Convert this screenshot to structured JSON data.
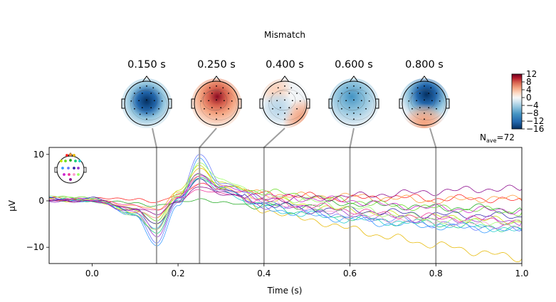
{
  "figure": {
    "title": "Mismatch",
    "nave_prefix": "N",
    "nave_sub": "ave",
    "nave_value": "=72"
  },
  "topomaps": [
    {
      "time_label": "0.150 s",
      "time": 0.15,
      "pattern": "central-negative"
    },
    {
      "time_label": "0.250 s",
      "time": 0.25,
      "pattern": "frontocentral-positive"
    },
    {
      "time_label": "0.400 s",
      "time": 0.4,
      "pattern": "weak-mixed"
    },
    {
      "time_label": "0.600 s",
      "time": 0.6,
      "pattern": "frontal-negative-weak"
    },
    {
      "time_label": "0.800 s",
      "time": 0.8,
      "pattern": "frontal-negative-occipital-positive"
    }
  ],
  "colorbar": {
    "colormap": "RdBu_r",
    "ticks": [
      "12",
      "8",
      "4",
      "0",
      "−4",
      "−8",
      "−12",
      "−16"
    ],
    "tick_values": [
      12,
      8,
      4,
      0,
      -4,
      -8,
      -12,
      -16
    ],
    "range": [
      -16,
      12
    ],
    "colors": {
      "max": "#67001f",
      "mid": "#f7f7f7",
      "min": "#053061"
    }
  },
  "chart_data": {
    "type": "line",
    "xlabel": "Time (s)",
    "ylabel": "µV",
    "xlim": [
      -0.1,
      1.0
    ],
    "ylim": [
      -13.5,
      11.5
    ],
    "xticks": [
      0.0,
      0.2,
      0.4,
      0.6,
      0.8,
      1.0
    ],
    "xtick_labels": [
      "0.0",
      "0.2",
      "0.4",
      "0.6",
      "0.8",
      "1.0"
    ],
    "yticks": [
      10,
      0,
      -10
    ],
    "ytick_labels": [
      "10",
      "0",
      "−10"
    ],
    "marker_lines": [
      0.15,
      0.25,
      0.4,
      0.6,
      0.8
    ],
    "grid": false,
    "sensor_legend": "top-left",
    "series": [
      {
        "color": "#ff2020",
        "points": [
          [
            -0.1,
            0.5
          ],
          [
            0.0,
            0.4
          ],
          [
            0.1,
            0.5
          ],
          [
            0.15,
            -0.5
          ],
          [
            0.2,
            1.5
          ],
          [
            0.25,
            3.5
          ],
          [
            0.3,
            2.5
          ],
          [
            0.4,
            1.5
          ],
          [
            0.5,
            1.0
          ],
          [
            0.6,
            0.5
          ],
          [
            0.7,
            0.8
          ],
          [
            0.8,
            0.5
          ],
          [
            0.9,
            0.5
          ],
          [
            1.0,
            0.0
          ]
        ]
      },
      {
        "color": "#ff9933",
        "points": [
          [
            -0.1,
            0.3
          ],
          [
            0.0,
            0.2
          ],
          [
            0.1,
            -1.0
          ],
          [
            0.15,
            -2.0
          ],
          [
            0.2,
            2.0
          ],
          [
            0.25,
            5.0
          ],
          [
            0.3,
            3.5
          ],
          [
            0.4,
            1.5
          ],
          [
            0.5,
            1.0
          ],
          [
            0.6,
            1.0
          ],
          [
            0.7,
            0.5
          ],
          [
            0.8,
            0.0
          ],
          [
            0.9,
            0.5
          ],
          [
            1.0,
            0.5
          ]
        ]
      },
      {
        "color": "#e6b800",
        "points": [
          [
            -0.1,
            0.0
          ],
          [
            0.0,
            0.2
          ],
          [
            0.1,
            -2.5
          ],
          [
            0.15,
            -3.5
          ],
          [
            0.2,
            1.0
          ],
          [
            0.25,
            7.0
          ],
          [
            0.3,
            3.0
          ],
          [
            0.4,
            -2.0
          ],
          [
            0.5,
            -4.0
          ],
          [
            0.6,
            -6.0
          ],
          [
            0.7,
            -8.0
          ],
          [
            0.8,
            -9.5
          ],
          [
            0.9,
            -11.0
          ],
          [
            1.0,
            -12.5
          ]
        ]
      },
      {
        "color": "#c8e000",
        "points": [
          [
            -0.1,
            0.5
          ],
          [
            0.0,
            0.0
          ],
          [
            0.1,
            -2.0
          ],
          [
            0.15,
            -5.0
          ],
          [
            0.2,
            2.0
          ],
          [
            0.25,
            7.5
          ],
          [
            0.3,
            4.0
          ],
          [
            0.4,
            0.5
          ],
          [
            0.5,
            -1.0
          ],
          [
            0.6,
            -2.0
          ],
          [
            0.7,
            -3.0
          ],
          [
            0.8,
            -3.5
          ],
          [
            0.9,
            -4.0
          ],
          [
            1.0,
            -4.5
          ]
        ]
      },
      {
        "color": "#66dd22",
        "points": [
          [
            -0.1,
            1.0
          ],
          [
            0.0,
            0.5
          ],
          [
            0.1,
            -2.0
          ],
          [
            0.15,
            -4.0
          ],
          [
            0.2,
            1.0
          ],
          [
            0.25,
            6.0
          ],
          [
            0.3,
            3.0
          ],
          [
            0.4,
            2.0
          ],
          [
            0.5,
            1.0
          ],
          [
            0.6,
            0.0
          ],
          [
            0.7,
            -1.0
          ],
          [
            0.8,
            -1.5
          ],
          [
            0.9,
            -2.0
          ],
          [
            1.0,
            -2.5
          ]
        ]
      },
      {
        "color": "#22aa22",
        "points": [
          [
            -0.1,
            0.0
          ],
          [
            0.0,
            0.0
          ],
          [
            0.1,
            -0.5
          ],
          [
            0.15,
            -1.0
          ],
          [
            0.2,
            -0.5
          ],
          [
            0.25,
            0.5
          ],
          [
            0.3,
            -0.5
          ],
          [
            0.4,
            -1.0
          ],
          [
            0.5,
            -1.0
          ],
          [
            0.6,
            -0.5
          ],
          [
            0.7,
            -1.0
          ],
          [
            0.8,
            -1.5
          ],
          [
            0.9,
            -1.5
          ],
          [
            1.0,
            -2.0
          ]
        ]
      },
      {
        "color": "#11cc77",
        "points": [
          [
            -0.1,
            0.3
          ],
          [
            0.0,
            0.0
          ],
          [
            0.1,
            -3.0
          ],
          [
            0.15,
            -7.0
          ],
          [
            0.2,
            0.0
          ],
          [
            0.25,
            5.0
          ],
          [
            0.3,
            2.5
          ],
          [
            0.4,
            -1.0
          ],
          [
            0.5,
            -2.5
          ],
          [
            0.6,
            -3.5
          ],
          [
            0.7,
            -4.5
          ],
          [
            0.8,
            -5.0
          ],
          [
            0.9,
            -5.5
          ],
          [
            1.0,
            -6.0
          ]
        ]
      },
      {
        "color": "#22cccc",
        "points": [
          [
            -0.1,
            0.0
          ],
          [
            0.0,
            0.2
          ],
          [
            0.1,
            -2.5
          ],
          [
            0.15,
            -6.0
          ],
          [
            0.2,
            0.5
          ],
          [
            0.25,
            5.0
          ],
          [
            0.3,
            2.0
          ],
          [
            0.4,
            -1.5
          ],
          [
            0.5,
            -3.0
          ],
          [
            0.6,
            -4.0
          ],
          [
            0.7,
            -4.5
          ],
          [
            0.8,
            -5.0
          ],
          [
            0.9,
            -5.5
          ],
          [
            1.0,
            -6.5
          ]
        ]
      },
      {
        "color": "#3399ff",
        "points": [
          [
            -0.1,
            0.5
          ],
          [
            0.0,
            0.0
          ],
          [
            0.1,
            -3.0
          ],
          [
            0.15,
            -10.0
          ],
          [
            0.2,
            -1.0
          ],
          [
            0.25,
            9.0
          ],
          [
            0.3,
            3.0
          ],
          [
            0.4,
            -1.5
          ],
          [
            0.5,
            -3.0
          ],
          [
            0.6,
            -4.0
          ],
          [
            0.7,
            -5.0
          ],
          [
            0.8,
            -5.5
          ],
          [
            0.9,
            -6.0
          ],
          [
            1.0,
            -6.5
          ]
        ]
      },
      {
        "color": "#6677ff",
        "points": [
          [
            -0.1,
            0.0
          ],
          [
            0.0,
            0.5
          ],
          [
            0.1,
            -3.0
          ],
          [
            0.15,
            -9.0
          ],
          [
            0.2,
            0.0
          ],
          [
            0.25,
            10.0
          ],
          [
            0.3,
            4.0
          ],
          [
            0.4,
            0.0
          ],
          [
            0.5,
            -2.0
          ],
          [
            0.6,
            -3.5
          ],
          [
            0.7,
            -4.0
          ],
          [
            0.8,
            -5.0
          ],
          [
            0.9,
            -5.5
          ],
          [
            1.0,
            -6.0
          ]
        ]
      },
      {
        "color": "#3322aa",
        "points": [
          [
            -0.1,
            0.5
          ],
          [
            0.0,
            0.5
          ],
          [
            0.1,
            -2.0
          ],
          [
            0.15,
            -5.0
          ],
          [
            0.2,
            0.5
          ],
          [
            0.25,
            4.5
          ],
          [
            0.3,
            2.0
          ],
          [
            0.4,
            -0.5
          ],
          [
            0.5,
            -1.5
          ],
          [
            0.6,
            -2.0
          ],
          [
            0.7,
            -2.5
          ],
          [
            0.8,
            -3.0
          ],
          [
            0.9,
            -3.0
          ],
          [
            1.0,
            -3.5
          ]
        ]
      },
      {
        "color": "#9933cc",
        "points": [
          [
            -0.1,
            0.0
          ],
          [
            0.0,
            0.0
          ],
          [
            0.1,
            -2.5
          ],
          [
            0.15,
            -7.5
          ],
          [
            0.2,
            0.0
          ],
          [
            0.25,
            6.0
          ],
          [
            0.3,
            2.5
          ],
          [
            0.4,
            -1.0
          ],
          [
            0.5,
            -2.0
          ],
          [
            0.6,
            -3.0
          ],
          [
            0.7,
            -3.5
          ],
          [
            0.8,
            -4.0
          ],
          [
            0.9,
            -4.0
          ],
          [
            1.0,
            -4.5
          ]
        ]
      },
      {
        "color": "#cc22cc",
        "points": [
          [
            -0.1,
            0.3
          ],
          [
            0.0,
            0.2
          ],
          [
            0.1,
            -2.0
          ],
          [
            0.15,
            -6.0
          ],
          [
            0.2,
            0.5
          ],
          [
            0.25,
            5.5
          ],
          [
            0.3,
            3.0
          ],
          [
            0.4,
            1.0
          ],
          [
            0.5,
            0.5
          ],
          [
            0.6,
            0.0
          ],
          [
            0.7,
            -1.0
          ],
          [
            0.8,
            -1.5
          ],
          [
            0.9,
            -2.0
          ],
          [
            1.0,
            -2.0
          ]
        ]
      },
      {
        "color": "#ee3399",
        "points": [
          [
            -0.1,
            0.2
          ],
          [
            0.0,
            0.0
          ],
          [
            0.1,
            -1.0
          ],
          [
            0.15,
            -2.0
          ],
          [
            0.2,
            0.5
          ],
          [
            0.25,
            2.5
          ],
          [
            0.3,
            1.5
          ],
          [
            0.4,
            0.0
          ],
          [
            0.5,
            -1.0
          ],
          [
            0.6,
            -2.0
          ],
          [
            0.7,
            -3.0
          ],
          [
            0.8,
            -3.5
          ],
          [
            0.9,
            -4.0
          ],
          [
            1.0,
            -4.5
          ]
        ]
      },
      {
        "color": "#ff99cc",
        "points": [
          [
            -0.1,
            0.5
          ],
          [
            0.0,
            0.5
          ],
          [
            0.1,
            -2.0
          ],
          [
            0.15,
            -3.5
          ],
          [
            0.2,
            1.0
          ],
          [
            0.25,
            4.0
          ],
          [
            0.3,
            2.0
          ],
          [
            0.4,
            0.0
          ],
          [
            0.5,
            -1.5
          ],
          [
            0.6,
            -3.0
          ],
          [
            0.7,
            -4.0
          ],
          [
            0.8,
            -4.5
          ],
          [
            0.9,
            -5.0
          ],
          [
            1.0,
            -5.5
          ]
        ]
      },
      {
        "color": "#99ff66",
        "points": [
          [
            -0.1,
            0.8
          ],
          [
            0.0,
            0.5
          ],
          [
            0.1,
            -3.0
          ],
          [
            0.15,
            -6.5
          ],
          [
            0.2,
            1.5
          ],
          [
            0.25,
            8.0
          ],
          [
            0.3,
            4.5
          ],
          [
            0.4,
            1.5
          ],
          [
            0.5,
            0.0
          ],
          [
            0.6,
            -1.5
          ],
          [
            0.7,
            -3.0
          ],
          [
            0.8,
            -4.0
          ],
          [
            0.9,
            -4.5
          ],
          [
            1.0,
            -5.0
          ]
        ]
      },
      {
        "color": "#880088",
        "points": [
          [
            -0.1,
            0.0
          ],
          [
            0.0,
            0.0
          ],
          [
            0.1,
            -1.5
          ],
          [
            0.15,
            -3.0
          ],
          [
            0.2,
            0.0
          ],
          [
            0.25,
            3.0
          ],
          [
            0.3,
            1.5
          ],
          [
            0.4,
            0.5
          ],
          [
            0.5,
            0.5
          ],
          [
            0.6,
            1.0
          ],
          [
            0.7,
            1.5
          ],
          [
            0.8,
            2.0
          ],
          [
            0.9,
            2.5
          ],
          [
            1.0,
            2.5
          ]
        ]
      }
    ]
  }
}
